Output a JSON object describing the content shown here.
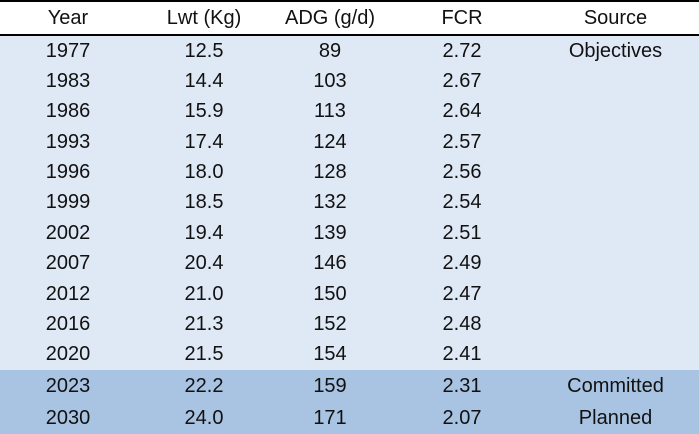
{
  "table": {
    "header": [
      "Year",
      "Lwt (Kg)",
      "ADG (g/d)",
      "FCR",
      "Source"
    ],
    "rows": [
      [
        "1977",
        "12.5",
        "89",
        "2.72",
        "Objectives"
      ],
      [
        "1983",
        "14.4",
        "103",
        "2.67"
      ],
      [
        "1986",
        "15.9",
        "113",
        "2.64"
      ],
      [
        "1993",
        "17.4",
        "124",
        "2.57"
      ],
      [
        "1996",
        "18.0",
        "128",
        "2.56"
      ],
      [
        "1999",
        "18.5",
        "132",
        "2.54"
      ],
      [
        "2002",
        "19.4",
        "139",
        "2.51"
      ],
      [
        "2007",
        "20.4",
        "146",
        "2.49"
      ],
      [
        "2012",
        "21.0",
        "150",
        "2.47"
      ],
      [
        "2016",
        "21.3",
        "152",
        "2.48"
      ],
      [
        "2020",
        "21.5",
        "154",
        "2.41"
      ],
      [
        "2023",
        "22.2",
        "159",
        "2.31",
        "Committed"
      ],
      [
        "2030",
        "24.0",
        "171",
        "2.07",
        "Planned"
      ]
    ]
  }
}
